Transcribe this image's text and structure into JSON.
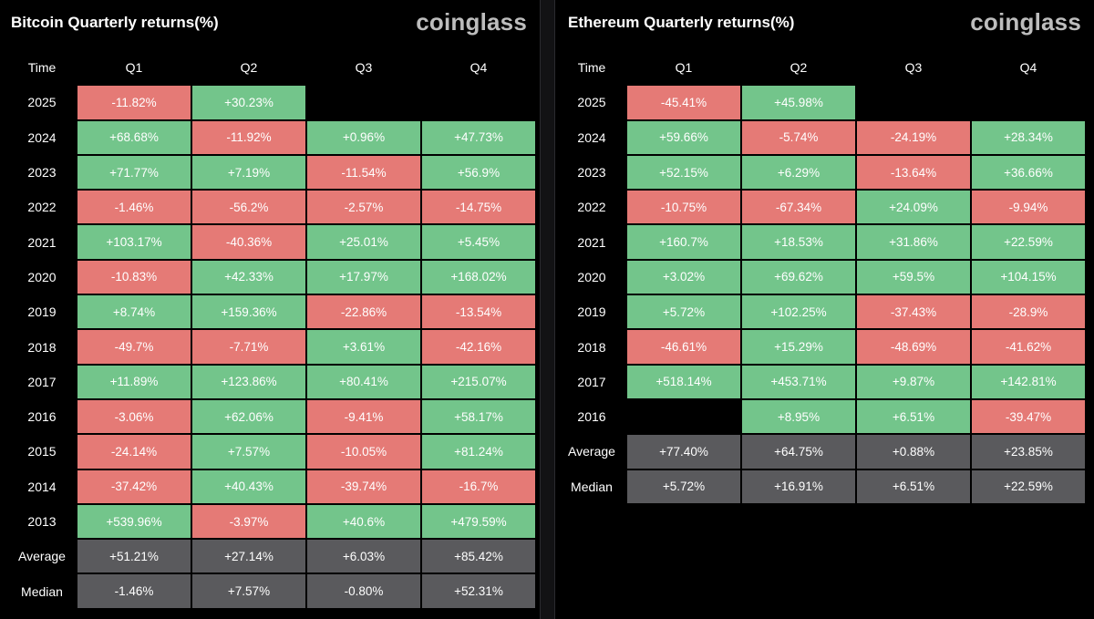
{
  "colors": {
    "positive": "#73c58b",
    "negative": "#e57a76",
    "summary": "#5a5a5d",
    "background": "#000000",
    "brand": "#bdbdbd"
  },
  "chart_data": [
    {
      "type": "table",
      "title": "Bitcoin Quarterly returns(%)",
      "brand": "coinglass",
      "corner_label": "Time",
      "columns": [
        "Q1",
        "Q2",
        "Q3",
        "Q4"
      ],
      "rows": [
        {
          "label": "2025",
          "values": [
            "-11.82%",
            "+30.23%",
            null,
            null
          ]
        },
        {
          "label": "2024",
          "values": [
            "+68.68%",
            "-11.92%",
            "+0.96%",
            "+47.73%"
          ]
        },
        {
          "label": "2023",
          "values": [
            "+71.77%",
            "+7.19%",
            "-11.54%",
            "+56.9%"
          ]
        },
        {
          "label": "2022",
          "values": [
            "-1.46%",
            "-56.2%",
            "-2.57%",
            "-14.75%"
          ]
        },
        {
          "label": "2021",
          "values": [
            "+103.17%",
            "-40.36%",
            "+25.01%",
            "+5.45%"
          ]
        },
        {
          "label": "2020",
          "values": [
            "-10.83%",
            "+42.33%",
            "+17.97%",
            "+168.02%"
          ]
        },
        {
          "label": "2019",
          "values": [
            "+8.74%",
            "+159.36%",
            "-22.86%",
            "-13.54%"
          ]
        },
        {
          "label": "2018",
          "values": [
            "-49.7%",
            "-7.71%",
            "+3.61%",
            "-42.16%"
          ]
        },
        {
          "label": "2017",
          "values": [
            "+11.89%",
            "+123.86%",
            "+80.41%",
            "+215.07%"
          ]
        },
        {
          "label": "2016",
          "values": [
            "-3.06%",
            "+62.06%",
            "-9.41%",
            "+58.17%"
          ]
        },
        {
          "label": "2015",
          "values": [
            "-24.14%",
            "+7.57%",
            "-10.05%",
            "+81.24%"
          ]
        },
        {
          "label": "2014",
          "values": [
            "-37.42%",
            "+40.43%",
            "-39.74%",
            "-16.7%"
          ]
        },
        {
          "label": "2013",
          "values": [
            "+539.96%",
            "-3.97%",
            "+40.6%",
            "+479.59%"
          ]
        }
      ],
      "summary": [
        {
          "label": "Average",
          "values": [
            "+51.21%",
            "+27.14%",
            "+6.03%",
            "+85.42%"
          ]
        },
        {
          "label": "Median",
          "values": [
            "-1.46%",
            "+7.57%",
            "-0.80%",
            "+52.31%"
          ]
        }
      ]
    },
    {
      "type": "table",
      "title": "Ethereum Quarterly returns(%)",
      "brand": "coinglass",
      "corner_label": "Time",
      "columns": [
        "Q1",
        "Q2",
        "Q3",
        "Q4"
      ],
      "rows": [
        {
          "label": "2025",
          "values": [
            "-45.41%",
            "+45.98%",
            null,
            null
          ]
        },
        {
          "label": "2024",
          "values": [
            "+59.66%",
            "-5.74%",
            "-24.19%",
            "+28.34%"
          ]
        },
        {
          "label": "2023",
          "values": [
            "+52.15%",
            "+6.29%",
            "-13.64%",
            "+36.66%"
          ]
        },
        {
          "label": "2022",
          "values": [
            "-10.75%",
            "-67.34%",
            "+24.09%",
            "-9.94%"
          ]
        },
        {
          "label": "2021",
          "values": [
            "+160.7%",
            "+18.53%",
            "+31.86%",
            "+22.59%"
          ]
        },
        {
          "label": "2020",
          "values": [
            "+3.02%",
            "+69.62%",
            "+59.5%",
            "+104.15%"
          ]
        },
        {
          "label": "2019",
          "values": [
            "+5.72%",
            "+102.25%",
            "-37.43%",
            "-28.9%"
          ]
        },
        {
          "label": "2018",
          "values": [
            "-46.61%",
            "+15.29%",
            "-48.69%",
            "-41.62%"
          ]
        },
        {
          "label": "2017",
          "values": [
            "+518.14%",
            "+453.71%",
            "+9.87%",
            "+142.81%"
          ]
        },
        {
          "label": "2016",
          "values": [
            null,
            "+8.95%",
            "+6.51%",
            "-39.47%"
          ]
        }
      ],
      "summary": [
        {
          "label": "Average",
          "values": [
            "+77.40%",
            "+64.75%",
            "+0.88%",
            "+23.85%"
          ]
        },
        {
          "label": "Median",
          "values": [
            "+5.72%",
            "+16.91%",
            "+6.51%",
            "+22.59%"
          ]
        }
      ]
    }
  ]
}
